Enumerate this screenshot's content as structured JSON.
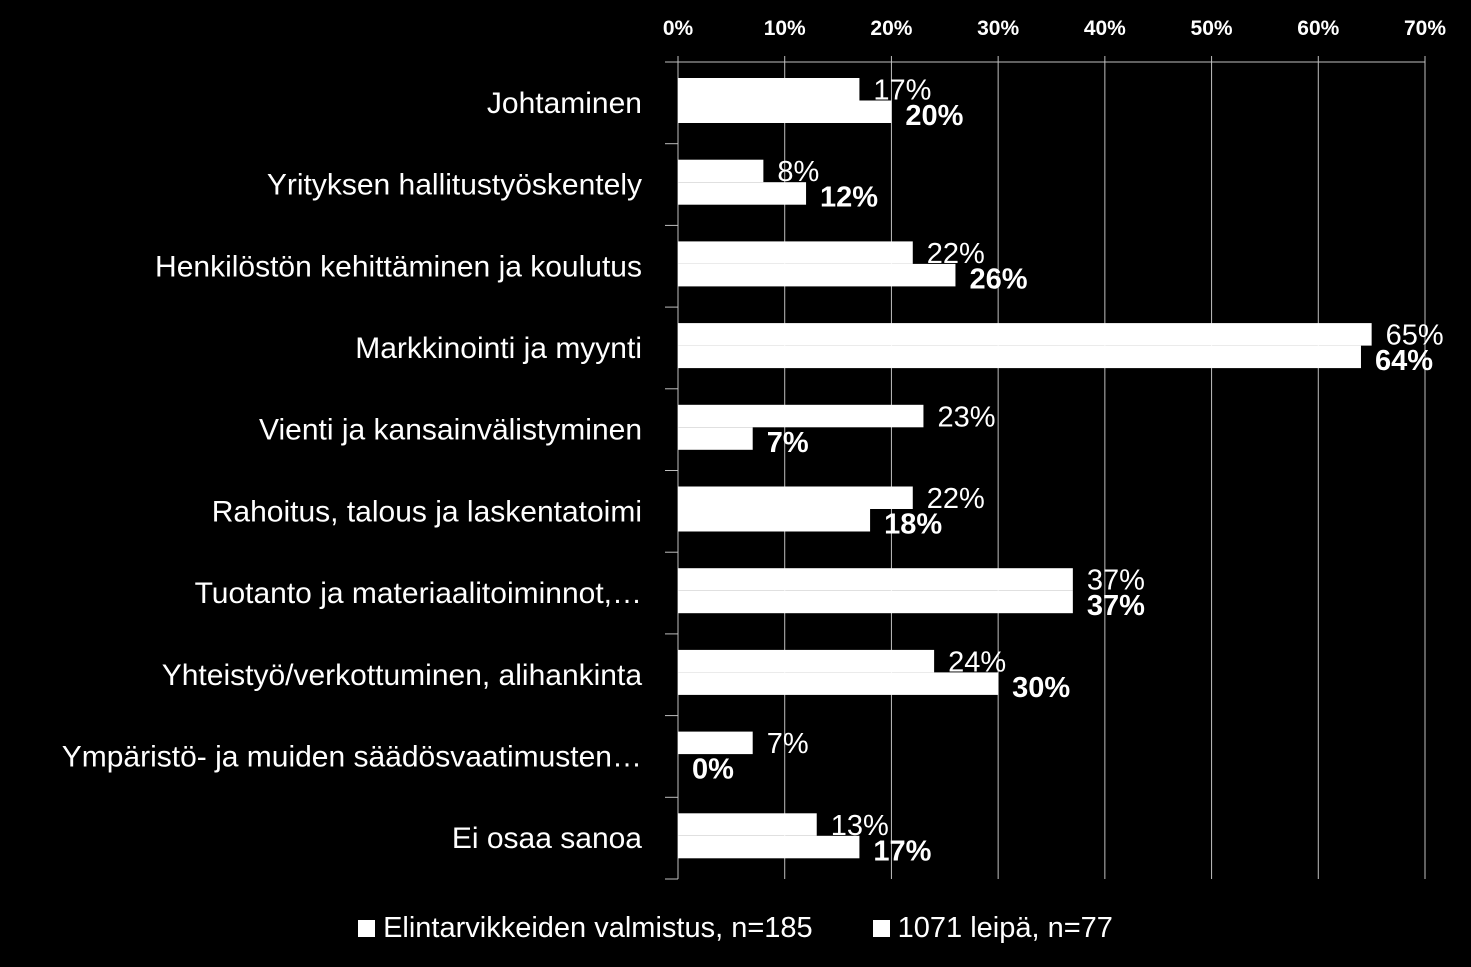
{
  "chart_data": {
    "type": "bar",
    "orientation": "horizontal",
    "categories": [
      "Johtaminen",
      "Yrityksen hallitustyöskentely",
      "Henkilöstön kehittäminen ja koulutus",
      "Markkinointi ja myynti",
      "Vienti ja kansainvälistyminen",
      "Rahoitus, talous ja laskentatoimi",
      "Tuotanto ja materiaalitoiminnot,…",
      "Yhteistyö/verkottuminen, alihankinta",
      "Ympäristö- ja muiden säädösvaatimusten…",
      "Ei osaa sanoa"
    ],
    "series": [
      {
        "name": "Elintarvikkeiden valmistus, n=185",
        "values": [
          17,
          8,
          22,
          65,
          23,
          22,
          37,
          24,
          7,
          13
        ],
        "labels": [
          "17%",
          "8%",
          "22%",
          "65%",
          "23%",
          "22%",
          "37%",
          "24%",
          "7%",
          "13%"
        ],
        "label_weight": "normal",
        "color": "#ffffff"
      },
      {
        "name": "1071 leipä, n=77",
        "values": [
          20,
          12,
          26,
          64,
          7,
          18,
          37,
          30,
          0,
          17
        ],
        "labels": [
          "20%",
          "12%",
          "26%",
          "64%",
          "7%",
          "18%",
          "37%",
          "30%",
          "0%",
          "17%"
        ],
        "label_weight": "bold",
        "color": "#ffffff"
      }
    ],
    "xlim": [
      0,
      70
    ],
    "xticks": [
      0,
      10,
      20,
      30,
      40,
      50,
      60,
      70
    ],
    "xtick_labels": [
      "0%",
      "10%",
      "20%",
      "30%",
      "40%",
      "50%",
      "60%",
      "70%"
    ],
    "x_axis_position": "top",
    "grid": true,
    "legend_position": "bottom",
    "background": "#000000",
    "foreground": "#ffffff",
    "grid_color": "#bfbfbf"
  }
}
